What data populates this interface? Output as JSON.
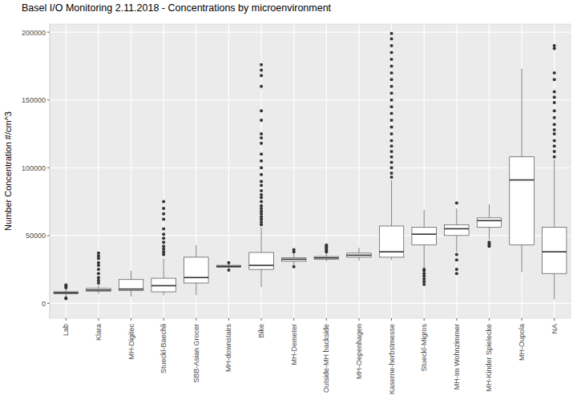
{
  "chart_data": {
    "type": "boxplot",
    "title": "Basel I/O Monitoring 2.11.2018 - Concentrations by microenvironment",
    "y_label": "Number Concentration #/cm^3",
    "categories": [
      "Lab",
      "Klara",
      "MH-Digitec",
      "Stueckl-Baechli",
      "SBB-Asian Grocer",
      "MH-downstairs",
      "Bike",
      "MH-Demeter",
      "Outside-MH backside",
      "MH-Oepenhagen",
      "Kaserne-herbstmesse",
      "Stueckl-Migros",
      "MH-Im Wohnzimmer",
      "MH-Kinder Spielecke",
      "MH-Oupola",
      "NA"
    ],
    "boxes": [
      {
        "min": 5000,
        "q1": 7000,
        "median": 7800,
        "q3": 8500,
        "max": 10500,
        "outliers": [
          3500,
          4000,
          11500,
          12500,
          13500
        ]
      },
      {
        "min": 7000,
        "q1": 9000,
        "median": 9800,
        "q3": 11000,
        "max": 13500,
        "outliers": [
          15000,
          17000,
          19000,
          22000,
          25000,
          28000,
          30000,
          33000,
          35000,
          37000
        ]
      },
      {
        "min": 5000,
        "q1": 9500,
        "median": 10500,
        "q3": 17500,
        "max": 24000,
        "outliers": []
      },
      {
        "min": 6000,
        "q1": 8500,
        "median": 13000,
        "q3": 18500,
        "max": 33000,
        "outliers": [
          36000,
          38000,
          40000,
          42000,
          45000,
          48000,
          51000,
          55000,
          62000,
          66000,
          70000,
          75000
        ]
      },
      {
        "min": 6000,
        "q1": 15000,
        "median": 19000,
        "q3": 34000,
        "max": 43000,
        "outliers": []
      },
      {
        "min": 25500,
        "q1": 26500,
        "median": 27300,
        "q3": 28000,
        "max": 29500,
        "outliers": [
          24500,
          30000
        ]
      },
      {
        "min": 12000,
        "q1": 25000,
        "median": 28000,
        "q3": 37500,
        "max": 56000,
        "outliers": [
          58000,
          60000,
          62000,
          64000,
          66000,
          68000,
          70000,
          72000,
          75000,
          78000,
          80000,
          83000,
          87000,
          90000,
          95000,
          100000,
          105000,
          110000,
          118000,
          122000,
          125000,
          135000,
          142000,
          160000,
          168000,
          172000,
          176000
        ]
      },
      {
        "min": 28000,
        "q1": 31000,
        "median": 32500,
        "q3": 33500,
        "max": 37000,
        "outliers": [
          27000,
          38000,
          39500
        ]
      },
      {
        "min": 31000,
        "q1": 32500,
        "median": 33500,
        "q3": 34500,
        "max": 37000,
        "outliers": [
          38000,
          39000,
          40000,
          41000,
          42000,
          43000
        ]
      },
      {
        "min": 31500,
        "q1": 34000,
        "median": 35500,
        "q3": 37000,
        "max": 41000,
        "outliers": []
      },
      {
        "min": 32000,
        "q1": 34000,
        "median": 38000,
        "q3": 57000,
        "max": 91000,
        "outliers": [
          93000,
          96000,
          100000,
          104000,
          108000,
          112000,
          116000,
          120000,
          125000,
          130000,
          135000,
          140000,
          145000,
          150000,
          155000,
          160000,
          165000,
          170000,
          175000,
          180000,
          185000,
          190000,
          195000,
          199000
        ]
      },
      {
        "min": 26000,
        "q1": 43000,
        "median": 51000,
        "q3": 56000,
        "max": 69000,
        "outliers": [
          14000,
          16000,
          18000,
          20000,
          22000,
          24000,
          25000
        ]
      },
      {
        "min": 38000,
        "q1": 50000,
        "median": 55000,
        "q3": 58000,
        "max": 70000,
        "outliers": [
          22000,
          25000,
          32000,
          36000,
          74000
        ]
      },
      {
        "min": 47000,
        "q1": 56000,
        "median": 61000,
        "q3": 63000,
        "max": 73000,
        "outliers": [
          42000,
          43000,
          44000,
          45000
        ]
      },
      {
        "min": 23000,
        "q1": 43000,
        "median": 91000,
        "q3": 108000,
        "max": 173000,
        "outliers": []
      },
      {
        "min": 3000,
        "q1": 22000,
        "median": 38000,
        "q3": 56000,
        "max": 106000,
        "outliers": [
          108000,
          112000,
          116000,
          120000,
          125000,
          128000,
          132000,
          137000,
          142000,
          148000,
          152000,
          156000,
          165000,
          170000,
          188000,
          190000
        ]
      }
    ],
    "ylim": [
      -11000,
      206000
    ],
    "yticks": [
      0,
      50000,
      100000,
      150000,
      200000
    ],
    "grid": true
  }
}
